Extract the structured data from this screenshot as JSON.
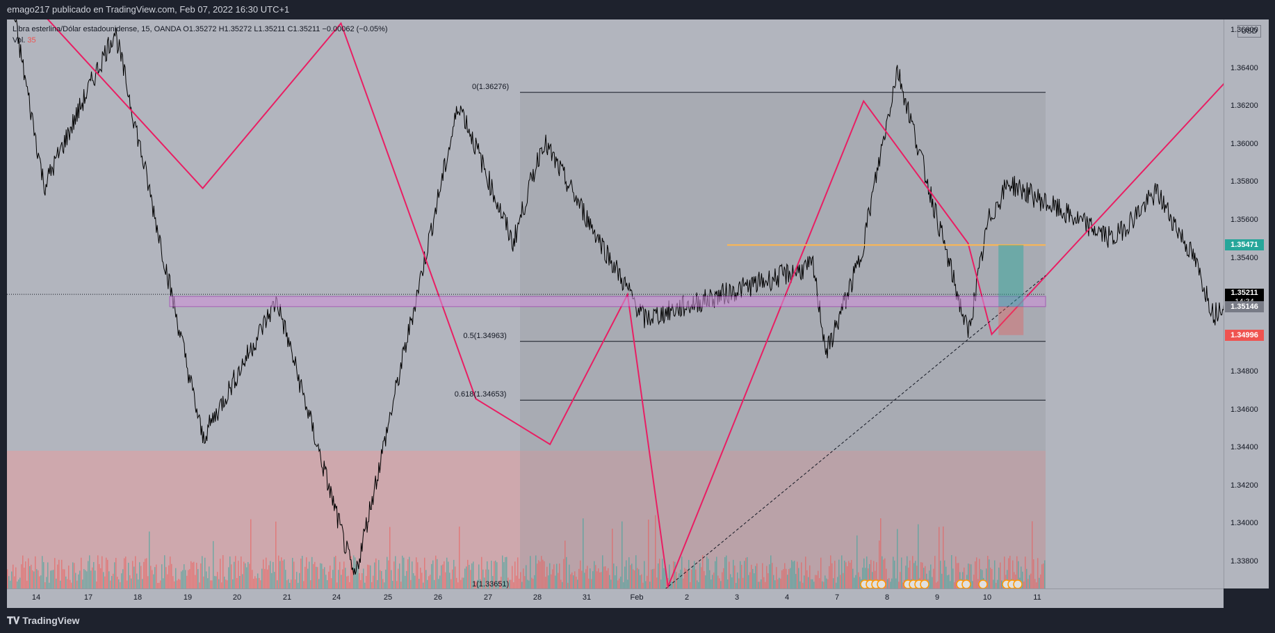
{
  "header": {
    "publish_text": "emago217 publicado en TradingView.com, Feb 07, 2022 16:30 UTC+1"
  },
  "footer": {
    "logo_text": "TradingView"
  },
  "legend": {
    "symbol_line": "Libra esterlina/Dólar estadounidense, 15, OANDA  O1.35272  H1.35272  L1.35211  C1.35211  −0.00062 (−0.05%)",
    "vol_label": "Vol.",
    "vol_value": "35"
  },
  "currency": "USD",
  "colors": {
    "zigzag": "#e91e63",
    "price": "#000000",
    "fill_top": "#ef9a9a",
    "long_zone": "#26a69a",
    "short_zone": "#ef5350",
    "orange_line": "#ffb74d",
    "box": "#ce93d8"
  },
  "badges": {
    "top": {
      "value": "1.35471",
      "color": "#26a69a"
    },
    "current": {
      "value": "1.35211",
      "countdown": "14:34",
      "color": "#000000"
    },
    "mid": {
      "value": "1.35146",
      "color": "#787b86"
    },
    "low": {
      "value": "1.34996",
      "color": "#ef5350"
    }
  },
  "fib_levels": [
    {
      "label": "0(1.36276)",
      "value": 1.36276
    },
    {
      "label": "0.5(1.34963)",
      "value": 1.34963
    },
    {
      "label": "0.618(1.34653)",
      "value": 1.34653
    },
    {
      "label": "1(1.33651)",
      "value": 1.33651
    }
  ],
  "chart_data": {
    "type": "line",
    "title": "Libra esterlina/Dólar estadounidense, 15, OANDA",
    "ylabel": "USD",
    "ylim": [
      1.3366,
      1.3666
    ],
    "y_ticks": [
      "1.36600",
      "1.36400",
      "1.36200",
      "1.36000",
      "1.35800",
      "1.35600",
      "1.35400",
      "1.35200",
      "1.35000",
      "1.34800",
      "1.34600",
      "1.34400",
      "1.34200",
      "1.34000",
      "1.33800"
    ],
    "x_ticks": [
      "14",
      "17",
      "18",
      "19",
      "20",
      "21",
      "24",
      "25",
      "26",
      "27",
      "28",
      "31",
      "Feb",
      "2",
      "3",
      "4",
      "7",
      "8",
      "9",
      "10",
      "11"
    ],
    "series": [
      {
        "x": [
          0,
          9,
          30,
          56,
          78,
          101,
          132,
          148,
          157,
          187,
          237,
          241,
          251,
          262,
          283,
          289,
          295,
          326,
          339,
          350,
          356,
          360
        ],
        "values": [
          1.3668,
          1.3578,
          1.366,
          1.3445,
          1.3518,
          1.3371,
          1.3622,
          1.3548,
          1.3602,
          1.3508,
          1.3536,
          1.349,
          1.354,
          1.364,
          1.35,
          1.356,
          1.358,
          1.355,
          1.3575,
          1.354,
          1.351,
          1.3521
        ]
      }
    ],
    "zigzag": {
      "x": [
        7,
        56,
        97,
        137,
        159,
        182,
        194,
        252,
        283,
        290,
        364
      ],
      "values": [
        1.3672,
        1.3577,
        1.3664,
        1.3466,
        1.3442,
        1.3521,
        1.3367,
        1.3623,
        1.3548,
        1.35,
        1.3642
      ]
    }
  }
}
